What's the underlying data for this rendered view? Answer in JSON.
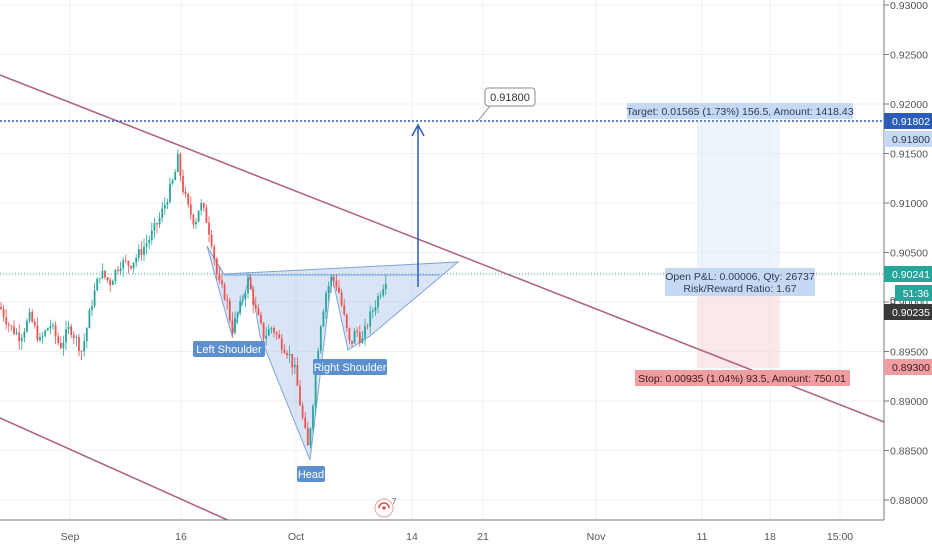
{
  "chart_data": {
    "type": "candlestick",
    "title": "",
    "ylim": [
      0.8775,
      0.9305
    ],
    "x_ticks": [
      "Sep",
      "16",
      "Oct",
      "14",
      "21",
      "Nov",
      "11",
      "18",
      "15:00"
    ],
    "y_ticks": [
      "0.93000",
      "0.92500",
      "0.92000",
      "0.91500",
      "0.91000",
      "0.90500",
      "0.90000",
      "0.89500",
      "0.89000",
      "0.88500",
      "0.88000"
    ],
    "price_labels": {
      "target": "0.91802",
      "target_line": "0.91800",
      "last": "0.90241",
      "countdown": "51:36",
      "bid": "0.90235",
      "stop": "0.89300"
    },
    "callout": "0.91800",
    "position": {
      "target": "Target: 0.01565 (1.73%) 156.5, Amount: 1418.43",
      "open_pnl": "Open P&L: 0.00006, Qty: 26737",
      "risk_reward": "Risk/Reward Ratio: 1.67",
      "stop": "Stop: 0.00935 (1.04%) 93.5, Amount: 750.01"
    },
    "pattern_labels": {
      "left_shoulder": "Left Shoulder",
      "head": "Head",
      "right_shoulder": "Right Shoulder"
    },
    "axis_stub": "0",
    "close_path": [
      [
        0,
        0.8995
      ],
      [
        10,
        0.8975
      ],
      [
        20,
        0.8965
      ],
      [
        30,
        0.8985
      ],
      [
        40,
        0.896
      ],
      [
        50,
        0.8978
      ],
      [
        60,
        0.8955
      ],
      [
        70,
        0.8975
      ],
      [
        82,
        0.895
      ],
      [
        92,
        0.9
      ],
      [
        100,
        0.903
      ],
      [
        110,
        0.902
      ],
      [
        120,
        0.904
      ],
      [
        130,
        0.9038
      ],
      [
        140,
        0.905
      ],
      [
        150,
        0.9065
      ],
      [
        160,
        0.9085
      ],
      [
        168,
        0.9108
      ],
      [
        174,
        0.9125
      ],
      [
        178,
        0.9145
      ],
      [
        182,
        0.9118
      ],
      [
        188,
        0.9095
      ],
      [
        195,
        0.908
      ],
      [
        200,
        0.91
      ],
      [
        206,
        0.9085
      ],
      [
        212,
        0.906
      ],
      [
        218,
        0.902
      ],
      [
        226,
        0.9005
      ],
      [
        232,
        0.8972
      ],
      [
        240,
        0.8995
      ],
      [
        248,
        0.9022
      ],
      [
        256,
        0.899
      ],
      [
        264,
        0.8965
      ],
      [
        272,
        0.8975
      ],
      [
        280,
        0.896
      ],
      [
        288,
        0.895
      ],
      [
        295,
        0.893
      ],
      [
        302,
        0.8885
      ],
      [
        308,
        0.8852
      ],
      [
        314,
        0.891
      ],
      [
        320,
        0.8975
      ],
      [
        326,
        0.901
      ],
      [
        332,
        0.9025
      ],
      [
        338,
        0.9015
      ],
      [
        344,
        0.8985
      ],
      [
        350,
        0.8955
      ],
      [
        356,
        0.8972
      ],
      [
        362,
        0.896
      ],
      [
        368,
        0.898
      ],
      [
        374,
        0.8995
      ],
      [
        380,
        0.901
      ],
      [
        386,
        0.9025
      ]
    ]
  }
}
